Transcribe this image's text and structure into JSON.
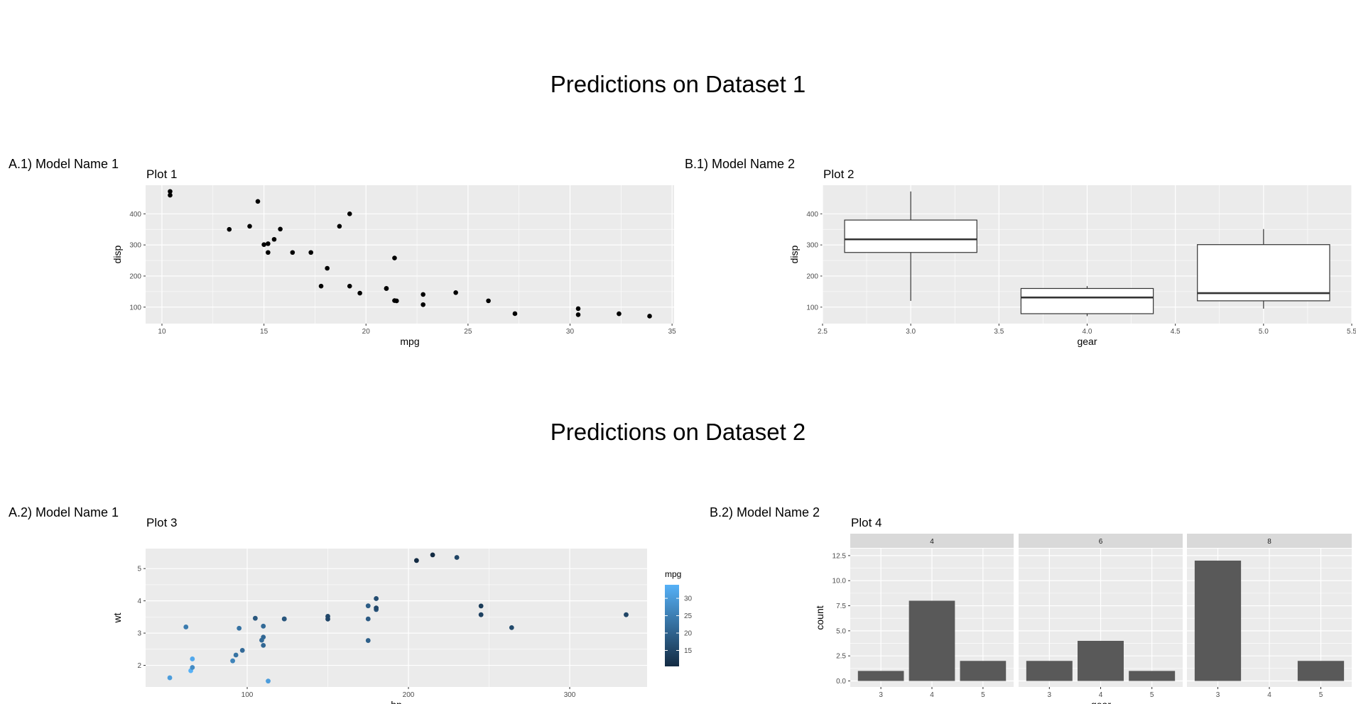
{
  "sections": [
    {
      "title": "Predictions on Dataset 1",
      "labels": [
        "A.1) Model Name 1",
        "B.1) Model Name 2"
      ]
    },
    {
      "title": "Predictions on Dataset 2",
      "labels": [
        "A.2) Model Name 1",
        "B.2) Model Name 2"
      ]
    }
  ],
  "chart_data": [
    {
      "type": "scatter",
      "title": "Plot 1",
      "xlabel": "mpg",
      "ylabel": "disp",
      "xlim": [
        9.2,
        35.1
      ],
      "ylim": [
        47,
        492
      ],
      "xticks": [
        10,
        15,
        20,
        25,
        30,
        35
      ],
      "yticks": [
        100,
        200,
        300,
        400
      ],
      "grid": true,
      "points": [
        [
          21,
          160
        ],
        [
          21,
          160
        ],
        [
          22.8,
          108
        ],
        [
          21.4,
          258
        ],
        [
          18.7,
          360
        ],
        [
          18.1,
          225
        ],
        [
          14.3,
          360
        ],
        [
          24.4,
          146.7
        ],
        [
          22.8,
          140.8
        ],
        [
          19.2,
          167.6
        ],
        [
          17.8,
          167.6
        ],
        [
          16.4,
          275.8
        ],
        [
          17.3,
          275.8
        ],
        [
          15.2,
          275.8
        ],
        [
          10.4,
          472
        ],
        [
          10.4,
          460
        ],
        [
          14.7,
          440
        ],
        [
          32.4,
          78.7
        ],
        [
          30.4,
          75.7
        ],
        [
          33.9,
          71.1
        ],
        [
          21.5,
          120.1
        ],
        [
          15.5,
          318
        ],
        [
          15.2,
          304
        ],
        [
          13.3,
          350
        ],
        [
          19.2,
          400
        ],
        [
          27.3,
          79
        ],
        [
          26,
          120.3
        ],
        [
          30.4,
          95.1
        ],
        [
          15.8,
          351
        ],
        [
          19.7,
          145
        ],
        [
          15,
          301
        ],
        [
          21.4,
          121
        ]
      ]
    },
    {
      "type": "box",
      "title": "Plot 2",
      "xlabel": "gear",
      "ylabel": "disp",
      "xlim": [
        2.5,
        5.5
      ],
      "ylim": [
        47,
        492
      ],
      "xticks": [
        2.5,
        3.0,
        3.5,
        4.0,
        4.5,
        5.0,
        5.5
      ],
      "xtick_labels": [
        "2.5",
        "3.0",
        "3.5",
        "4.0",
        "4.5",
        "5.0",
        "5.5"
      ],
      "yticks": [
        100,
        200,
        300,
        400
      ],
      "grid": true,
      "boxes": [
        {
          "x": 3,
          "min": 120.1,
          "q1": 275.8,
          "median": 318,
          "q3": 380,
          "max": 472
        },
        {
          "x": 4,
          "min": 71.1,
          "q1": 78.9,
          "median": 130.9,
          "q3": 160,
          "max": 167.6
        },
        {
          "x": 5,
          "min": 95.1,
          "q1": 120.3,
          "median": 145,
          "q3": 301,
          "max": 351
        }
      ]
    },
    {
      "type": "scatter",
      "title": "Plot 3",
      "xlabel": "hp",
      "ylabel": "wt",
      "xlim": [
        37,
        348
      ],
      "ylim": [
        1.33,
        5.62
      ],
      "xticks": [
        100,
        200,
        300
      ],
      "yticks": [
        2,
        3,
        4,
        5
      ],
      "grid": true,
      "color_by": "mpg",
      "legend": {
        "title": "mpg",
        "ticks": [
          15,
          20,
          25,
          30
        ],
        "range": [
          10.4,
          33.9
        ],
        "low_color": "#132B43",
        "high_color": "#56B1F7",
        "position": "right"
      },
      "points": [
        [
          110,
          2.62,
          21
        ],
        [
          110,
          2.875,
          21
        ],
        [
          93,
          2.32,
          22.8
        ],
        [
          110,
          3.215,
          21.4
        ],
        [
          175,
          3.44,
          18.7
        ],
        [
          105,
          3.46,
          18.1
        ],
        [
          245,
          3.57,
          14.3
        ],
        [
          62,
          3.19,
          24.4
        ],
        [
          95,
          3.15,
          22.8
        ],
        [
          123,
          3.44,
          19.2
        ],
        [
          123,
          3.44,
          17.8
        ],
        [
          180,
          4.07,
          16.4
        ],
        [
          180,
          3.73,
          17.3
        ],
        [
          180,
          3.78,
          15.2
        ],
        [
          205,
          5.25,
          10.4
        ],
        [
          215,
          5.424,
          10.4
        ],
        [
          230,
          5.345,
          14.7
        ],
        [
          66,
          2.2,
          32.4
        ],
        [
          52,
          1.615,
          30.4
        ],
        [
          65,
          1.835,
          33.9
        ],
        [
          97,
          2.465,
          21.5
        ],
        [
          150,
          3.52,
          15.5
        ],
        [
          150,
          3.435,
          15.2
        ],
        [
          245,
          3.84,
          13.3
        ],
        [
          175,
          3.845,
          19.2
        ],
        [
          66,
          1.935,
          27.3
        ],
        [
          91,
          2.14,
          26
        ],
        [
          113,
          1.513,
          30.4
        ],
        [
          264,
          3.17,
          15.8
        ],
        [
          175,
          2.77,
          19.7
        ],
        [
          335,
          3.57,
          15
        ],
        [
          109,
          2.78,
          21.4
        ]
      ]
    },
    {
      "type": "bar",
      "title": "Plot 4",
      "xlabel": "gear",
      "ylabel": "count",
      "ylim": [
        -0.6,
        13.2
      ],
      "yticks": [
        0.0,
        2.5,
        5.0,
        7.5,
        10.0,
        12.5
      ],
      "ytick_labels": [
        "0.0",
        "2.5",
        "5.0",
        "7.5",
        "10.0",
        "12.5"
      ],
      "categories": [
        "3",
        "4",
        "5"
      ],
      "grid": true,
      "facets": [
        {
          "label": "4",
          "values": [
            1,
            8,
            2
          ]
        },
        {
          "label": "6",
          "values": [
            2,
            4,
            1
          ]
        },
        {
          "label": "8",
          "values": [
            12,
            0,
            2
          ]
        }
      ]
    }
  ]
}
